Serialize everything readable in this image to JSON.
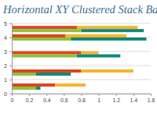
{
  "chart_data": {
    "type": "bar",
    "title": "Horizontal XY Clustered Stack Bars",
    "orientation": "horizontal",
    "stacked": true,
    "grid": true,
    "x": [
      0.5,
      1.5,
      2.8,
      4.0,
      4.6
    ],
    "xlim": [
      0,
      5
    ],
    "xticks": [
      0,
      1,
      2,
      3,
      4,
      5
    ],
    "ylim": [
      0,
      1.6
    ],
    "yticks": [
      0,
      0.2,
      0.4,
      0.6,
      0.8,
      1,
      1.2,
      1.4,
      1.6
    ],
    "series": [
      {
        "color": "#e0441e",
        "values": [
          0.5,
          0.8,
          0.8,
          0.62,
          0.75
        ]
      },
      {
        "color": "#f7b52a",
        "values": [
          0.35,
          0.6,
          0.2,
          0.7,
          0.7
        ]
      },
      {
        "color": "#8cc23f",
        "values": [
          0.28,
          0.28,
          0.75,
          0.68,
          0.8
        ]
      },
      {
        "color": "#0f8a7c",
        "values": [
          0.05,
          0.4,
          0.5,
          0.87,
          0.72
        ]
      }
    ]
  }
}
